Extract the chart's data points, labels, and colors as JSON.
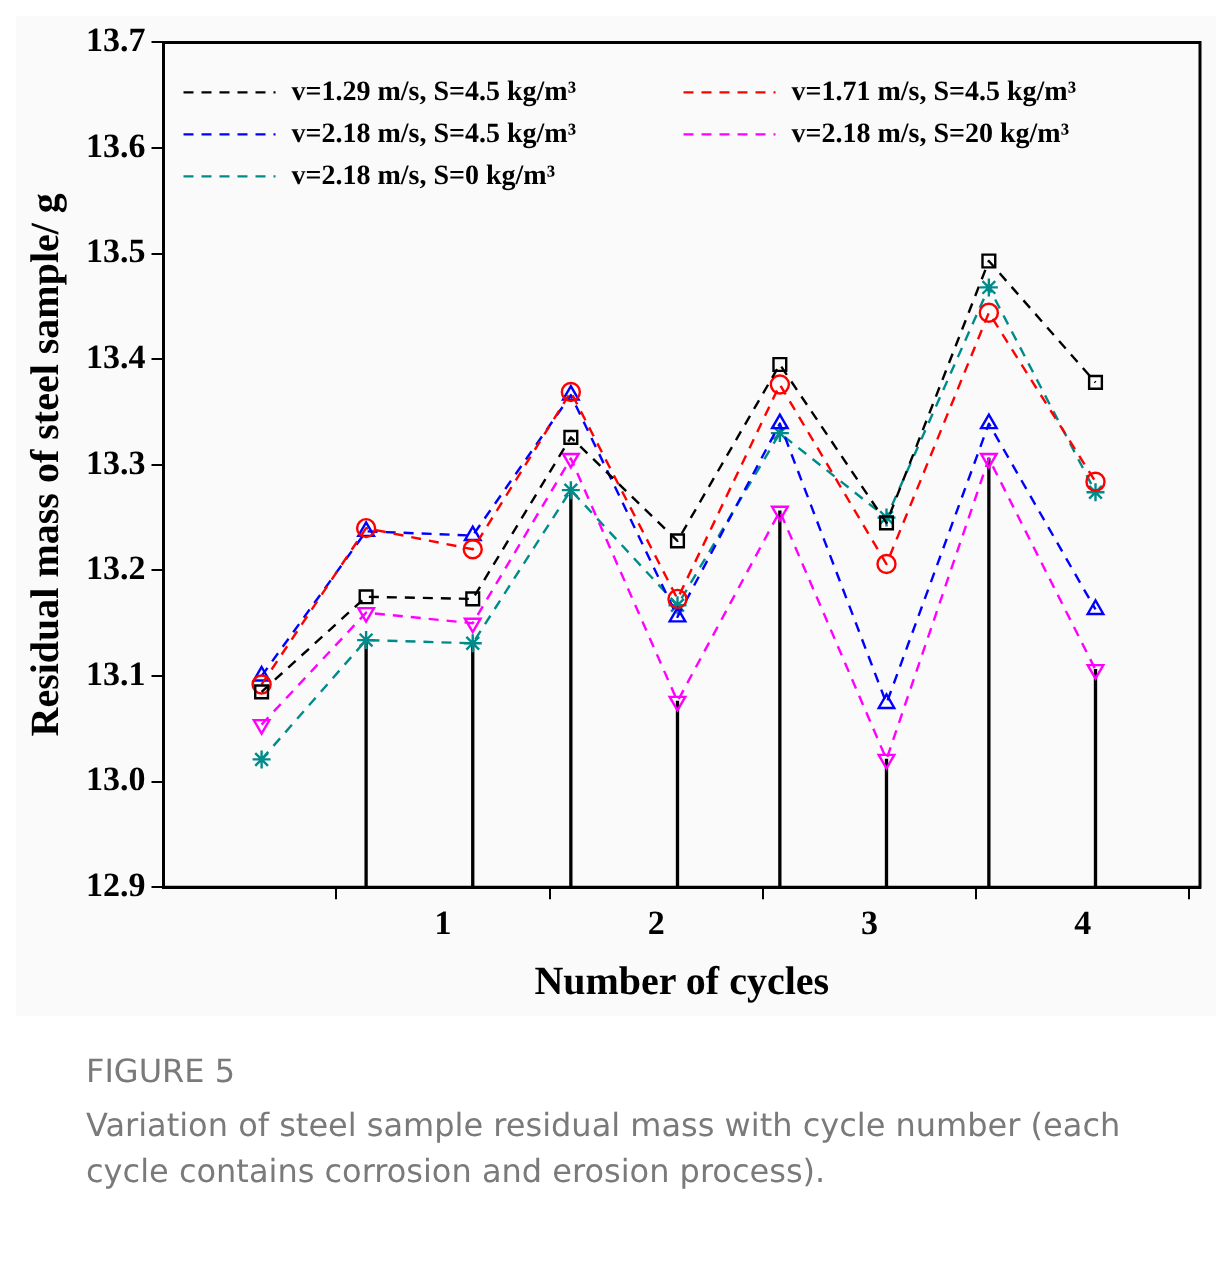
{
  "chart_data": {
    "type": "line",
    "title": "FIGURE 5",
    "subtitle": "Variation of steel sample residual mass with cycle number (each cycle contains corrosion and erosion process).",
    "xlabel": "Number of cycles",
    "ylabel": "Residual mass of steel sample/ g",
    "x": [
      0.15,
      0.64,
      1.14,
      1.6,
      2.1,
      2.58,
      3.08,
      3.56,
      4.06
    ],
    "xlim": [
      -0.31,
      4.55
    ],
    "xticks": [
      1,
      2,
      3,
      4
    ],
    "ylim": [
      12.9,
      13.7
    ],
    "yticks": [
      12.9,
      {
        "value": 13,
        "label": "13.0"
      },
      13.1,
      13.2,
      13.3,
      13.4,
      13.5,
      13.6,
      13.7
    ],
    "grid": false,
    "legend": "top left",
    "line_style": "dashed",
    "series": [
      {
        "name": "v=1.29 m/s, S=4.5 kg/m³",
        "color": "#000000",
        "marker": "square",
        "values": [
          13.085,
          13.175,
          13.173,
          13.326,
          13.228,
          13.395,
          13.245,
          13.493,
          13.378
        ]
      },
      {
        "name": "v=1.71 m/s, S=4.5 kg/m³",
        "color": "#ff0000",
        "marker": "circle",
        "values": [
          13.092,
          13.24,
          13.22,
          13.369,
          13.173,
          13.376,
          13.206,
          13.444,
          13.284
        ]
      },
      {
        "name": "v=2.18 m/s, S=4.5 kg/m³",
        "color": "#0000ff",
        "marker": "triangle",
        "values": [
          13.1,
          13.237,
          13.233,
          13.366,
          13.156,
          13.339,
          13.074,
          13.339,
          13.163
        ]
      },
      {
        "name": "v=2.18 m/s, S=20 kg/m³",
        "color": "#ff00ff",
        "marker": "triangle-down",
        "values": [
          13.054,
          13.16,
          13.15,
          13.306,
          13.076,
          13.256,
          13.021,
          13.306,
          13.106
        ]
      },
      {
        "name": "v=2.18 m/s, S=0 kg/m³",
        "color": "#008b8b",
        "marker": "cross",
        "values": [
          13.021,
          13.134,
          13.131,
          13.276,
          13.167,
          13.33,
          13.25,
          13.468,
          13.274
        ]
      },
      {
        "type": "bar",
        "color": "#000000",
        "values": [
          null,
          13.134,
          13.131,
          13.276,
          13.076,
          13.256,
          13.021,
          13.306,
          13.106
        ]
      }
    ]
  }
}
